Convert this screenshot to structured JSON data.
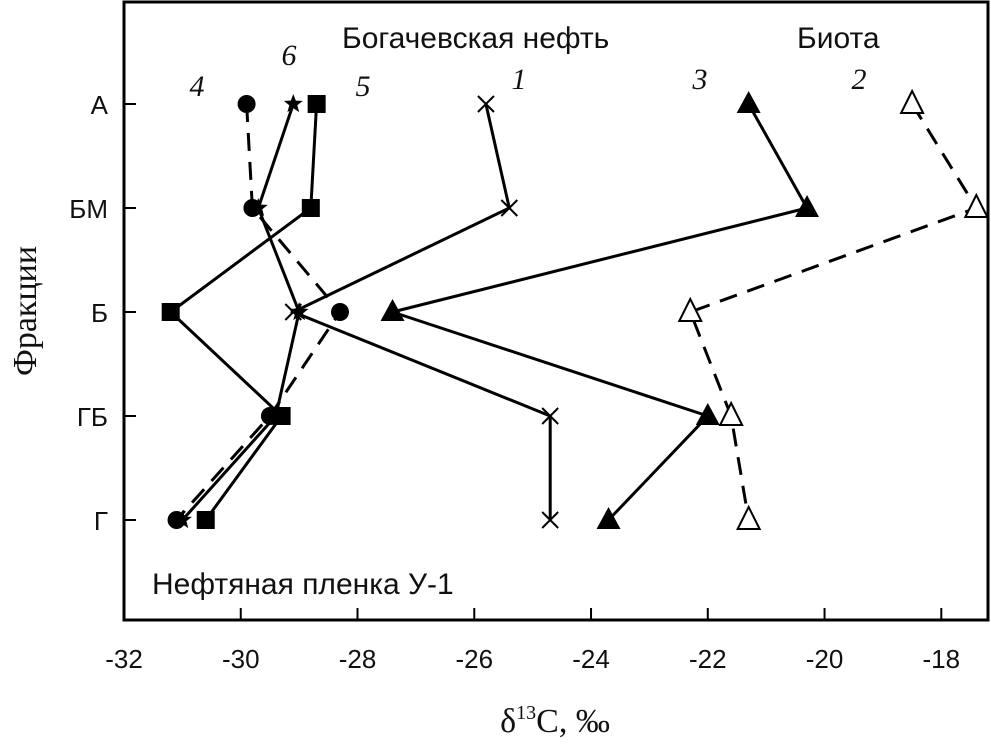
{
  "chart_data": {
    "type": "line",
    "orientation": "horizontal-categories",
    "xlabel": "δ13C, ‰",
    "xlabel_main": "δ",
    "xlabel_sup": "13",
    "xlabel_rest": "C, ‰",
    "ylabel": "Фракции",
    "xlim": [
      -32,
      -17.2
    ],
    "xticks": [
      -32,
      -30,
      -28,
      -26,
      -24,
      -22,
      -20,
      -18
    ],
    "xtick_labels": [
      "-32",
      "-30",
      "-28",
      "-26",
      "-24",
      "-22",
      "-20",
      "-18"
    ],
    "categories": [
      "А",
      "БМ",
      "Б",
      "ГБ",
      "Г"
    ],
    "grid": false,
    "annotations": [
      {
        "id": "bog",
        "text": "Богачевская нефть"
      },
      {
        "id": "biota",
        "text": "Биота"
      },
      {
        "id": "film",
        "text": "Нефтяная пленка У-1"
      }
    ],
    "series": [
      {
        "name": "1",
        "marker": "x",
        "line": "solid",
        "values": [
          -25.8,
          -25.4,
          -29.1,
          -24.7,
          -24.7
        ]
      },
      {
        "name": "2",
        "marker": "open-triangle",
        "line": "dashed",
        "values": [
          -18.5,
          -17.4,
          -22.3,
          -21.6,
          -21.3
        ]
      },
      {
        "name": "3",
        "marker": "filled-triangle",
        "line": "solid",
        "values": [
          -21.3,
          -20.3,
          -27.4,
          -22.0,
          -23.7
        ]
      },
      {
        "name": "4",
        "marker": "filled-circle",
        "line": "dashed",
        "values": [
          -29.9,
          -29.8,
          -28.3,
          -29.5,
          -31.1
        ]
      },
      {
        "name": "5",
        "marker": "filled-square",
        "line": "solid",
        "values": [
          -28.7,
          -28.8,
          -31.2,
          -29.3,
          -30.6
        ]
      },
      {
        "name": "6",
        "marker": "star",
        "line": "solid",
        "values": [
          -29.1,
          -29.7,
          -29.0,
          -29.4,
          -31.0
        ]
      }
    ]
  }
}
